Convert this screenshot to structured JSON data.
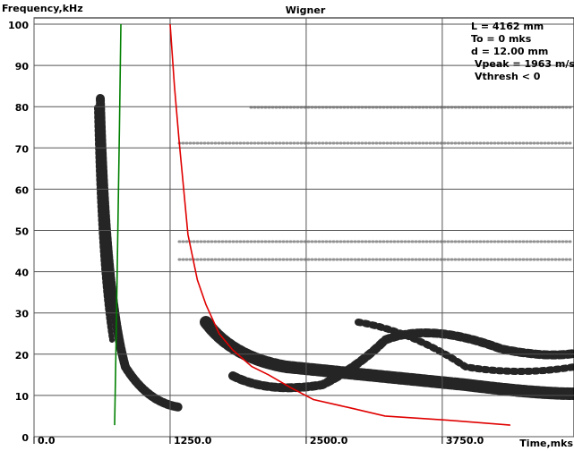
{
  "chart_data": {
    "type": "line",
    "title": "Wigner",
    "y_label": "Frequency,kHz",
    "x_label": "Time,mks",
    "annotations": [
      "L = 4162 mm",
      "To = 0 mks",
      "d = 12.00 mm",
      "Vpeak = 1963 m/s",
      "Vthresh < 0"
    ],
    "series": [
      {
        "color": "#008000",
        "x": [
          798,
          785,
          770,
          755,
          745,
          740
        ],
        "values": [
          100,
          75,
          50,
          25,
          10,
          2.8
        ]
      },
      {
        "color": "#e00000",
        "x": [
          1250,
          1290,
          1332,
          1414,
          1500,
          1579,
          1700,
          1826,
          2000,
          2155,
          2350,
          2566,
          2900,
          3224,
          3800,
          4375
        ],
        "values": [
          100,
          85,
          72,
          49,
          38,
          32,
          25,
          21,
          17,
          15,
          12,
          9,
          7,
          5,
          4,
          2.8
        ]
      }
    ],
    "xlim": [
      0,
      4960
    ],
    "ylim": [
      0,
      100
    ],
    "xticks": [
      {
        "value": 0,
        "label": "0.0"
      },
      {
        "value": 1250,
        "label": "1250.0"
      },
      {
        "value": 2500,
        "label": "2500.0"
      },
      {
        "value": 3750,
        "label": "3750.0"
      }
    ],
    "yticks": [
      0,
      10,
      20,
      30,
      40,
      50,
      60,
      70,
      80,
      90,
      100
    ],
    "grid": true
  }
}
